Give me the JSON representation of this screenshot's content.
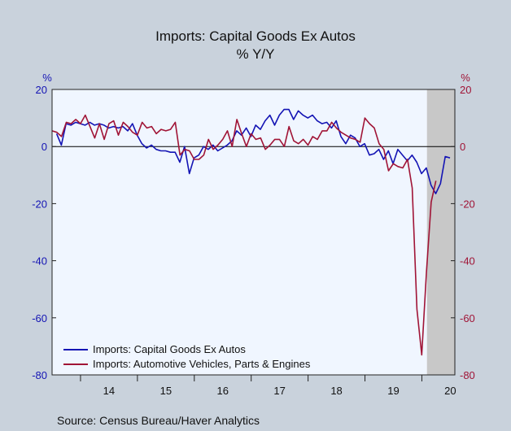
{
  "chart_data": {
    "type": "line",
    "title": "Imports: Capital Goods Ex Autos",
    "subtitle": "% Y/Y",
    "left_unit": "%",
    "right_unit": "%",
    "ylim": [
      -80,
      20
    ],
    "yticks_left": [
      "20",
      "0",
      "-20",
      "-40",
      "-60",
      "-80"
    ],
    "yticks_right": [
      "20",
      "0",
      "-20",
      "-40",
      "-60",
      "-80"
    ],
    "ytick_values": [
      20,
      0,
      -20,
      -40,
      -60,
      -80
    ],
    "x_start": 2013.5,
    "x_end": 2020.58,
    "x_step": 0.0833,
    "year_labels": [
      "14",
      "15",
      "16",
      "17",
      "18",
      "19",
      "20"
    ],
    "year_centers": [
      2014.5,
      2015.5,
      2016.5,
      2017.5,
      2018.5,
      2019.5,
      2020.5
    ],
    "recession": [
      2020.09,
      2020.67
    ],
    "zero_line": true,
    "series": [
      {
        "name": "Imports: Capital Goods Ex Autos",
        "color": "#1414b4",
        "x_start": 2013.58,
        "values": [
          4.5,
          0.5,
          8,
          7.5,
          8.5,
          8,
          7.5,
          8.5,
          7.5,
          8,
          7.5,
          6.5,
          7,
          6.5,
          7,
          5.5,
          8,
          4,
          1,
          -0.5,
          0.5,
          -1,
          -1.5,
          -1.5,
          -2,
          -2,
          -5.5,
          0,
          -9.5,
          -4,
          -3,
          0,
          -1,
          0.5,
          -1.5,
          -0.5,
          0.5,
          2,
          5.5,
          4,
          6.5,
          3.5,
          7.5,
          6,
          9,
          11,
          7.5,
          11,
          13,
          13,
          9.5,
          12.5,
          11,
          10,
          11,
          9,
          8,
          8.5,
          6.5,
          9,
          3.5,
          1,
          4,
          3,
          0,
          1,
          -3,
          -2.5,
          -1,
          -4.5,
          -1.5,
          -6,
          -1,
          -3,
          -5,
          -3,
          -5.5,
          -9.5,
          -7.5,
          -13.5,
          -16.5,
          -13,
          -3.5,
          -4
        ]
      },
      {
        "name": "Imports: Automotive Vehicles, Parts & Engines",
        "color": "#a01436",
        "x_start": 2013.5,
        "values": [
          5.5,
          5,
          3.5,
          8.5,
          8,
          9.5,
          8,
          11,
          7,
          3,
          8,
          2.5,
          8,
          9,
          4,
          8.5,
          7,
          5,
          4,
          8.5,
          6.5,
          7,
          4.5,
          6,
          5.5,
          6,
          8.5,
          -3,
          -1,
          -1.5,
          -4.5,
          -4.5,
          -3,
          2.5,
          -1,
          0.5,
          2.5,
          5.5,
          0,
          9.5,
          4.5,
          0,
          4.5,
          2.5,
          3,
          -1,
          0.5,
          2.5,
          2.5,
          0,
          7,
          2,
          1,
          2.5,
          0.5,
          3.5,
          2.5,
          5.5,
          5.5,
          8.5,
          6.5,
          5,
          4,
          3,
          2.5,
          1.5,
          10,
          8,
          6.5,
          1,
          -1,
          -8.5,
          -6,
          -7,
          -7.5,
          -4.5,
          -14.5,
          -57,
          -73,
          -44,
          -19.5,
          -12
        ]
      }
    ],
    "source": "Source:  Census Bureau/Haver Analytics"
  }
}
